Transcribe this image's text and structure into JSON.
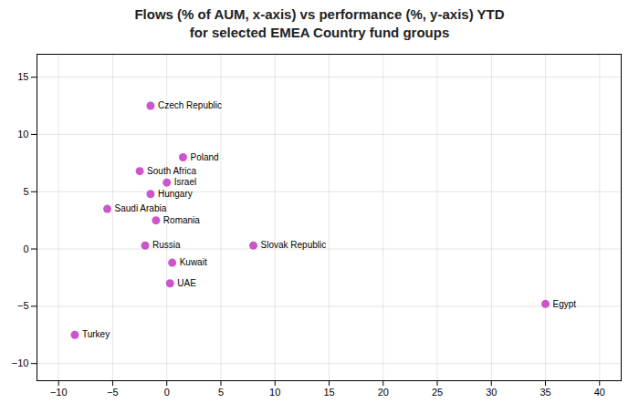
{
  "chart_data": {
    "type": "scatter",
    "title": "Flows (% of AUM, x-axis) vs performance (%, y-axis) YTD\nfor selected EMEA Country fund groups",
    "color": "#cc55cc",
    "points": [
      {
        "label": "Czech Republic",
        "x": -1.5,
        "y": 12.5
      },
      {
        "label": "Poland",
        "x": 1.5,
        "y": 8.0
      },
      {
        "label": "South Africa",
        "x": -2.5,
        "y": 6.8
      },
      {
        "label": "Israel",
        "x": 0.0,
        "y": 5.8
      },
      {
        "label": "Hungary",
        "x": -1.5,
        "y": 4.8
      },
      {
        "label": "Saudi Arabia",
        "x": -5.5,
        "y": 3.5
      },
      {
        "label": "Romania",
        "x": -1.0,
        "y": 2.5
      },
      {
        "label": "Russia",
        "x": -2.0,
        "y": 0.3
      },
      {
        "label": "Slovak Republic",
        "x": 8.0,
        "y": 0.3
      },
      {
        "label": "Kuwait",
        "x": 0.5,
        "y": -1.2
      },
      {
        "label": "UAE",
        "x": 0.3,
        "y": -3.0
      },
      {
        "label": "Egypt",
        "x": 35.0,
        "y": -4.8
      },
      {
        "label": "Turkey",
        "x": -8.5,
        "y": -7.5
      }
    ],
    "xlim": [
      -12,
      42
    ],
    "ylim": [
      -11.5,
      17
    ],
    "xticks": [
      -10,
      -5,
      0,
      5,
      10,
      15,
      20,
      25,
      30,
      35,
      40
    ],
    "yticks": [
      -10,
      -5,
      0,
      5,
      10,
      15
    ],
    "grid": true
  }
}
